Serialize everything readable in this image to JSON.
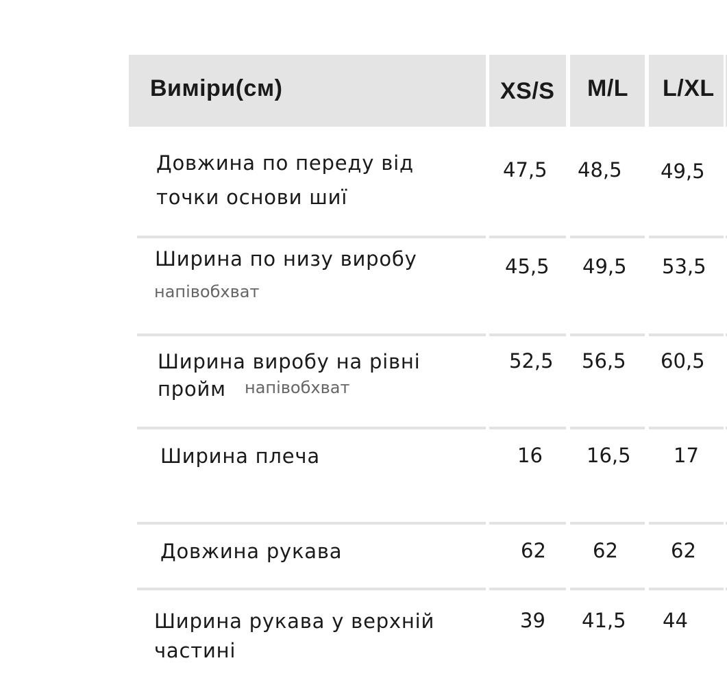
{
  "header": {
    "label": "Виміри(см)",
    "sizes": [
      "XS/S",
      "M/L",
      "L/XL"
    ]
  },
  "rows": [
    {
      "label": "Довжина по переду від точки основи шиї",
      "line1": "Довжина по переду від",
      "line2": "точки основи шиї",
      "values": [
        "47,5",
        "48,5",
        "49,5"
      ]
    },
    {
      "label": "Ширина по низу виробу",
      "note": "напівобхват",
      "values": [
        "45,5",
        "49,5",
        "53,5"
      ]
    },
    {
      "line1": "Ширина виробу на рівні",
      "line2": "пройм",
      "note": "напівобхват",
      "values": [
        "52,5",
        "56,5",
        "60,5"
      ]
    },
    {
      "label": "Ширина плеча",
      "values": [
        "16",
        "16,5",
        "17"
      ]
    },
    {
      "label": "Довжина рукава",
      "values": [
        "62",
        "62",
        "62"
      ]
    },
    {
      "line1": "Ширина рукава у верхній",
      "line2": "частині",
      "values": [
        "39",
        "41,5",
        "44"
      ]
    }
  ],
  "colors": {
    "header_bg": "#e4e4e4",
    "separator": "#e2e2e2",
    "note": "#666666"
  }
}
